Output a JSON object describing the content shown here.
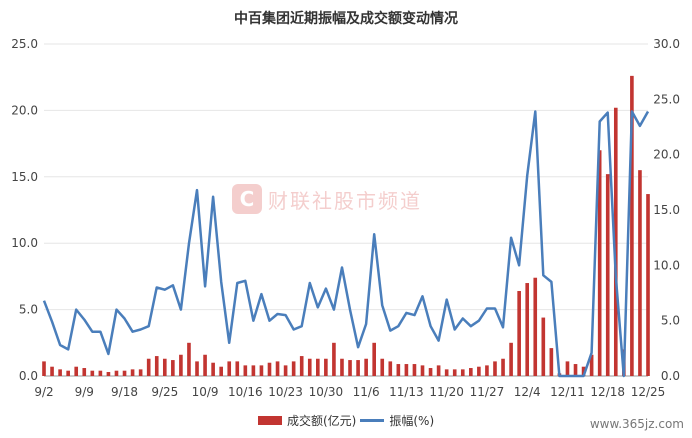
{
  "colors": {
    "bar": "#c23531",
    "line": "#4a7ebb",
    "grid": "#e6e6e6",
    "axis": "#444444"
  },
  "watermark": {
    "logo": "C",
    "text": "财联社股市频道"
  },
  "site_label": "www.365jz.com",
  "chart_data": {
    "type": "bar",
    "title": "中百集团近期振幅及成交额变动情况",
    "grid": true,
    "legend_position": "bottom",
    "left_axis": {
      "min": 0,
      "max": 25,
      "ticks": [
        "0.0",
        "5.0",
        "10.0",
        "15.0",
        "20.0",
        "25.0"
      ]
    },
    "right_axis": {
      "min": 0,
      "max": 30,
      "ticks": [
        "0.0",
        "5.0",
        "10.0",
        "15.0",
        "20.0",
        "25.0",
        "30.0"
      ]
    },
    "x_tick_labels": [
      "9/2",
      "9/9",
      "9/18",
      "9/25",
      "10/9",
      "10/16",
      "10/23",
      "10/30",
      "11/6",
      "11/13",
      "11/20",
      "11/27",
      "12/4",
      "12/11",
      "12/18",
      "12/25"
    ],
    "x_tick_indices": [
      0,
      5,
      10,
      15,
      20,
      25,
      30,
      35,
      40,
      45,
      50,
      55,
      60,
      65,
      70,
      75
    ],
    "series": [
      {
        "name": "成交额(亿元)",
        "kind": "bar",
        "axis": "left",
        "values": [
          1.1,
          0.7,
          0.5,
          0.4,
          0.7,
          0.6,
          0.4,
          0.4,
          0.3,
          0.4,
          0.4,
          0.5,
          0.5,
          1.3,
          1.5,
          1.3,
          1.2,
          1.6,
          2.5,
          1.1,
          1.6,
          1.0,
          0.7,
          1.1,
          1.1,
          0.8,
          0.8,
          0.8,
          1.0,
          1.1,
          0.8,
          1.1,
          1.5,
          1.3,
          1.3,
          1.3,
          2.5,
          1.3,
          1.2,
          1.2,
          1.3,
          2.5,
          1.3,
          1.1,
          0.9,
          0.9,
          0.9,
          0.8,
          0.6,
          0.8,
          0.5,
          0.5,
          0.5,
          0.6,
          0.7,
          0.8,
          1.1,
          1.3,
          2.5,
          6.4,
          7.0,
          7.4,
          4.4,
          2.1,
          0.2,
          1.1,
          0.9,
          0.7,
          1.6,
          17.0,
          15.2,
          20.2,
          2.0,
          22.6,
          15.5,
          13.7
        ]
      },
      {
        "name": "振幅(%)",
        "kind": "line",
        "axis": "right",
        "values": [
          6.8,
          4.9,
          2.8,
          2.4,
          6.0,
          5.1,
          4.0,
          4.0,
          2.0,
          6.0,
          5.2,
          4.0,
          4.2,
          4.5,
          8.0,
          7.8,
          8.2,
          6.0,
          12.0,
          16.8,
          8.1,
          16.2,
          8.5,
          3.0,
          8.4,
          8.6,
          5.0,
          7.4,
          5.0,
          5.6,
          5.5,
          4.2,
          4.5,
          8.4,
          6.2,
          7.9,
          6.0,
          9.8,
          6.0,
          2.6,
          4.7,
          12.8,
          6.4,
          4.1,
          4.5,
          5.7,
          5.5,
          7.2,
          4.5,
          3.2,
          6.9,
          4.2,
          5.2,
          4.5,
          5.0,
          6.1,
          6.1,
          4.4,
          12.5,
          10.0,
          18.1,
          23.9,
          9.1,
          8.5,
          0.0,
          0.0,
          0.0,
          0.0,
          2.1,
          23.0,
          23.8,
          9.0,
          0.0,
          23.9,
          22.6,
          23.9
        ]
      }
    ]
  }
}
